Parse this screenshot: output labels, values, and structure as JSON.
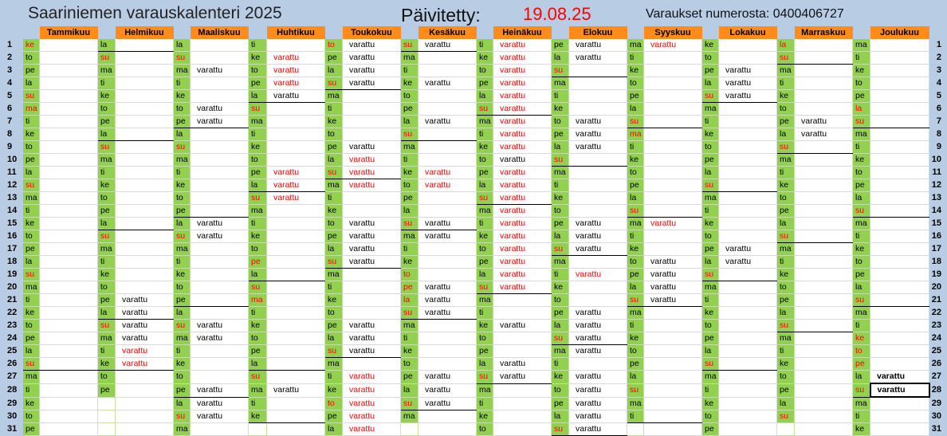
{
  "header": {
    "title": "Saariniemen varauskalenteri 2025",
    "updated_label": "Päivitetty:",
    "updated_date": "19.08.25",
    "booking_text": "Varaukset numerosta: 0400406727"
  },
  "colors": {
    "accent_orange": "#ff8c1a",
    "day_green": "#92d050",
    "red": "#ff0000",
    "frame_blue": "#b8cce4"
  },
  "months": [
    {
      "name": "Tammikuu",
      "days": [
        "ke",
        "to",
        "pe",
        "la",
        "su",
        "ma",
        "ti",
        "ke",
        "to",
        "pe",
        "la",
        "su",
        "ma",
        "ti",
        "ke",
        "to",
        "pe",
        "la",
        "su",
        "ma",
        "ti",
        "ke",
        "to",
        "pe",
        "la",
        "su",
        "ma",
        "ti",
        "ke",
        "to",
        "pe"
      ],
      "status": {}
    },
    {
      "name": "Helmikuu",
      "days": [
        "la",
        "su",
        "ma",
        "ti",
        "ke",
        "to",
        "pe",
        "la",
        "su",
        "ma",
        "ti",
        "ke",
        "to",
        "pe",
        "la",
        "su",
        "ma",
        "ti",
        "ke",
        "to",
        "pe",
        "la",
        "su",
        "ma",
        "ti",
        "ke",
        "to",
        "pe",
        "",
        "",
        ""
      ],
      "status": {
        "21": "varattu",
        "22": "varattu",
        "23": "varattu",
        "24": "varattu",
        "25": "varattu",
        "26": "varattu"
      }
    },
    {
      "name": "Maaliskuu",
      "days": [
        "la",
        "su",
        "ma",
        "ti",
        "ke",
        "to",
        "pe",
        "la",
        "su",
        "ma",
        "ti",
        "ke",
        "to",
        "pe",
        "la",
        "su",
        "ma",
        "ti",
        "ke",
        "to",
        "pe",
        "la",
        "su",
        "ma",
        "ti",
        "ke",
        "to",
        "pe",
        "la",
        "su",
        "ma"
      ],
      "status": {
        "3": "varattu",
        "6": "varattu",
        "7": "varattu",
        "15": "varattu",
        "16": "varattu",
        "23": "varattu",
        "24": "varattu",
        "28": "varattu",
        "29": "varattu",
        "30": "varattu"
      }
    },
    {
      "name": "Huhtikuu",
      "days": [
        "ti",
        "ke",
        "to",
        "pe",
        "la",
        "su",
        "ma",
        "ti",
        "ke",
        "to",
        "pe",
        "la",
        "su",
        "ma",
        "ti",
        "ke",
        "to",
        "pe",
        "la",
        "su",
        "ma",
        "ti",
        "ke",
        "to",
        "pe",
        "la",
        "su",
        "ma",
        "ti",
        "ke",
        ""
      ],
      "status": {
        "2": "varattu",
        "3": "varattu",
        "4": "varattu",
        "5": "varattu",
        "11": "varattu",
        "12": "varattu",
        "13": "varattu",
        "28": "varattu"
      }
    },
    {
      "name": "Toukokuu",
      "days": [
        "to",
        "pe",
        "la",
        "su",
        "ma",
        "ti",
        "ke",
        "to",
        "pe",
        "la",
        "su",
        "ma",
        "ti",
        "ke",
        "to",
        "pe",
        "la",
        "su",
        "ma",
        "ti",
        "ke",
        "to",
        "pe",
        "la",
        "su",
        "ma",
        "ti",
        "ke",
        "to",
        "pe",
        "la"
      ],
      "status": {
        "1": "varattu",
        "2": "varattu",
        "3": "varattu",
        "4": "varattu",
        "9": "varattu",
        "10": "varattu",
        "11": "varattu",
        "12": "varattu",
        "15": "varattu",
        "16": "varattu",
        "17": "varattu",
        "18": "varattu",
        "23": "varattu",
        "24": "varattu",
        "25": "varattu",
        "27": "varattu",
        "28": "varattu",
        "29": "varattu",
        "30": "varattu",
        "31": "varattu"
      }
    },
    {
      "name": "Kesäkuu",
      "days": [
        "su",
        "ma",
        "ti",
        "ke",
        "to",
        "pe",
        "la",
        "su",
        "ma",
        "ti",
        "ke",
        "to",
        "pe",
        "la",
        "su",
        "ma",
        "ti",
        "ke",
        "to",
        "pe",
        "la",
        "su",
        "ma",
        "ti",
        "ke",
        "to",
        "pe",
        "la",
        "su",
        "ma",
        ""
      ],
      "status": {
        "1": "varattu",
        "4": "varattu",
        "7": "varattu",
        "11": "varattu",
        "12": "varattu",
        "15": "varattu",
        "16": "varattu",
        "20": "varattu",
        "21": "varattu",
        "22": "varattu",
        "27": "varattu",
        "28": "varattu",
        "29": "varattu"
      }
    },
    {
      "name": "Heinäkuu",
      "days": [
        "ti",
        "ke",
        "to",
        "pe",
        "la",
        "su",
        "ma",
        "ti",
        "ke",
        "to",
        "pe",
        "la",
        "su",
        "ma",
        "ti",
        "ke",
        "to",
        "pe",
        "la",
        "su",
        "ma",
        "ti",
        "ke",
        "to",
        "pe",
        "la",
        "su",
        "ma",
        "ti",
        "ke",
        "to"
      ],
      "status": {
        "1": "varattu",
        "2": "varattu",
        "3": "varattu",
        "4": "varattu",
        "5": "varattu",
        "6": "varattu",
        "7": "varattu",
        "8": "varattu",
        "9": "varattu",
        "10": "varattu",
        "11": "varattu",
        "12": "varattu",
        "13": "varattu",
        "14": "varattu",
        "15": "varattu",
        "16": "varattu",
        "17": "varattu",
        "18": "varattu",
        "19": "varattu",
        "20": "varattu",
        "23": "varattu",
        "26": "varattu",
        "27": "varattu"
      }
    },
    {
      "name": "Elokuu",
      "days": [
        "pe",
        "la",
        "su",
        "ma",
        "ti",
        "ke",
        "to",
        "pe",
        "la",
        "su",
        "ma",
        "ti",
        "ke",
        "to",
        "pe",
        "la",
        "su",
        "ma",
        "ti",
        "ke",
        "to",
        "pe",
        "la",
        "su",
        "ma",
        "ti",
        "ke",
        "to",
        "pe",
        "la",
        "su"
      ],
      "status": {
        "1": "varattu",
        "2": "varattu",
        "7": "varattu",
        "8": "varattu",
        "9": "varattu",
        "15": "varattu",
        "16": "varattu",
        "17": "varattu",
        "19": "varattu",
        "22": "varattu",
        "23": "varattu",
        "24": "varattu",
        "25": "varattu",
        "27": "varattu",
        "28": "varattu",
        "29": "varattu",
        "30": "varattu",
        "31": "varattu"
      }
    },
    {
      "name": "Syyskuu",
      "days": [
        "ma",
        "ti",
        "ke",
        "to",
        "pe",
        "la",
        "su",
        "ma",
        "ti",
        "ke",
        "to",
        "pe",
        "la",
        "su",
        "ma",
        "ti",
        "ke",
        "to",
        "pe",
        "la",
        "su",
        "ma",
        "ti",
        "ke",
        "to",
        "pe",
        "la",
        "su",
        "ma",
        "ti",
        ""
      ],
      "status": {
        "1": "varattu",
        "15": "varattu",
        "18": "varattu",
        "19": "varattu",
        "20": "varattu",
        "21": "varattu"
      }
    },
    {
      "name": "Lokakuu",
      "days": [
        "ke",
        "to",
        "pe",
        "la",
        "su",
        "ma",
        "ti",
        "ke",
        "to",
        "pe",
        "la",
        "su",
        "ma",
        "ti",
        "ke",
        "to",
        "pe",
        "la",
        "su",
        "ma",
        "ti",
        "ke",
        "to",
        "pe",
        "la",
        "su",
        "ma",
        "ti",
        "ke",
        "to",
        "pe"
      ],
      "status": {
        "3": "varattu",
        "4": "varattu",
        "5": "varattu",
        "17": "varattu",
        "18": "varattu"
      }
    },
    {
      "name": "Marraskuu",
      "days": [
        "la",
        "su",
        "ma",
        "ti",
        "ke",
        "to",
        "pe",
        "la",
        "su",
        "ma",
        "ti",
        "ke",
        "to",
        "pe",
        "la",
        "su",
        "ma",
        "ti",
        "ke",
        "to",
        "pe",
        "la",
        "su",
        "ma",
        "ti",
        "ke",
        "to",
        "pe",
        "la",
        "su",
        ""
      ],
      "status": {
        "7": "varattu",
        "8": "varattu"
      }
    },
    {
      "name": "Joulukuu",
      "days": [
        "ma",
        "ti",
        "ke",
        "to",
        "pe",
        "la",
        "su",
        "ma",
        "ti",
        "ke",
        "to",
        "pe",
        "la",
        "su",
        "ma",
        "ti",
        "ke",
        "to",
        "pe",
        "la",
        "su",
        "ma",
        "ti",
        "ke",
        "to",
        "pe",
        "la",
        "su",
        "ma",
        "ti",
        "ke"
      ],
      "status": {
        "27": "varattu",
        "28": "varattu"
      }
    }
  ]
}
